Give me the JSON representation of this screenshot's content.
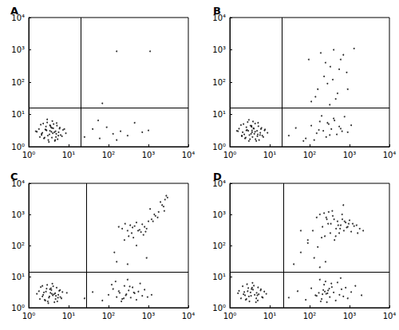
{
  "chart_data": [
    {
      "type": "scatter",
      "title": "A",
      "log": true,
      "grid": false,
      "color": "#000000",
      "marker": "circle",
      "xlim": [
        1,
        10000
      ],
      "ylim": [
        1,
        10000
      ],
      "xticks": [
        {
          "value": 1,
          "label": "10⁰"
        },
        {
          "value": 10,
          "label": "10¹"
        },
        {
          "value": 100,
          "label": "10²"
        },
        {
          "value": 1000,
          "label": "10³"
        },
        {
          "value": 10000,
          "label": "10⁴"
        }
      ],
      "yticks": [
        {
          "value": 1,
          "label": "10⁰"
        },
        {
          "value": 10,
          "label": "10¹"
        },
        {
          "value": 100,
          "label": "10²"
        },
        {
          "value": 1000,
          "label": "10³"
        },
        {
          "value": 10000,
          "label": "10⁴"
        }
      ],
      "gate": {
        "x": 20,
        "y": 16
      },
      "x": [
        2.1,
        3.4,
        4.8,
        2.7,
        5.6,
        3.1,
        1.8,
        4.2,
        6.3,
        2.5,
        3.8,
        2.2,
        5.1,
        4.5,
        3.0,
        1.6,
        7.2,
        2.9,
        4.0,
        3.6,
        2.4,
        5.9,
        3.3,
        4.7,
        2.0,
        6.8,
        3.9,
        2.6,
        5.3,
        4.4,
        1.9,
        3.5,
        2.8,
        4.9,
        6.0,
        3.2,
        2.3,
        5.5,
        4.1,
        3.7,
        8.5,
        1.5,
        2.9,
        4.6,
        3.4,
        7.8,
        2.1,
        5.0,
        3.8,
        2.7,
        25,
        40,
        60,
        90,
        130,
        200,
        300,
        450,
        700,
        1000,
        55,
        160,
        160,
        1100,
        70
      ],
      "values": [
        2.5,
        3.1,
        2.0,
        4.2,
        2.8,
        1.6,
        3.5,
        5.0,
        2.3,
        1.9,
        3.8,
        2.7,
        4.5,
        1.5,
        2.2,
        2.9,
        3.3,
        5.6,
        2.6,
        4.0,
        1.8,
        3.6,
        2.4,
        3.0,
        4.8,
        2.1,
        6.2,
        3.4,
        1.7,
        2.8,
        2.0,
        4.4,
        3.2,
        2.5,
        3.9,
        1.4,
        5.2,
        2.2,
        3.7,
        2.9,
        2.6,
        3.0,
        7.0,
        1.6,
        4.6,
        3.5,
        2.3,
        5.4,
        1.9,
        3.3,
        2.0,
        3.5,
        1.8,
        4.0,
        2.5,
        3.0,
        2.2,
        5.5,
        2.8,
        3.2,
        6.5,
        1.6,
        900,
        900,
        22
      ]
    },
    {
      "type": "scatter",
      "title": "B",
      "log": true,
      "grid": false,
      "color": "#000000",
      "marker": "circle",
      "xlim": [
        1,
        10000
      ],
      "ylim": [
        1,
        10000
      ],
      "xticks": [
        {
          "value": 1,
          "label": "10⁰"
        },
        {
          "value": 10,
          "label": "10¹"
        },
        {
          "value": 100,
          "label": "10²"
        },
        {
          "value": 1000,
          "label": "10³"
        },
        {
          "value": 10000,
          "label": "10⁴"
        }
      ],
      "yticks": [
        {
          "value": 1,
          "label": "10⁰"
        },
        {
          "value": 10,
          "label": "10¹"
        },
        {
          "value": 100,
          "label": "10²"
        },
        {
          "value": 1000,
          "label": "10³"
        },
        {
          "value": 10000,
          "label": "10⁴"
        }
      ],
      "gate": {
        "x": 20,
        "y": 16
      },
      "x": [
        2.3,
        3.6,
        4.9,
        2.6,
        5.8,
        3.2,
        1.7,
        4.3,
        6.5,
        2.4,
        3.9,
        2.1,
        5.2,
        4.6,
        3.1,
        1.6,
        7.4,
        2.8,
        4.1,
        3.5,
        2.5,
        6.0,
        3.4,
        4.8,
        1.9,
        6.9,
        3.8,
        2.7,
        5.4,
        4.3,
        2.0,
        3.3,
        2.9,
        5.0,
        6.2,
        3.0,
        2.2,
        5.7,
        4.0,
        3.6,
        8.8,
        1.5,
        3.0,
        4.4,
        3.5,
        7.6,
        2.0,
        5.1,
        3.7,
        2.6,
        30,
        45,
        80,
        110,
        150,
        180,
        220,
        260,
        300,
        350,
        400,
        480,
        550,
        650,
        750,
        900,
        1100,
        130,
        200,
        280,
        320,
        420,
        600,
        70,
        170,
        110,
        160,
        230,
        330,
        190,
        400,
        600,
        850,
        280,
        500,
        140,
        700,
        1300,
        250,
        450,
        380,
        95,
        900,
        550,
        320
      ],
      "values": [
        2.4,
        3.2,
        2.1,
        4.0,
        2.7,
        1.7,
        3.6,
        5.2,
        2.2,
        1.8,
        3.7,
        2.8,
        4.3,
        1.5,
        2.3,
        3.0,
        3.2,
        5.8,
        2.5,
        4.1,
        1.9,
        3.5,
        2.5,
        3.1,
        4.7,
        2.0,
        6.0,
        3.3,
        1.6,
        2.9,
        2.1,
        4.5,
        3.1,
        2.4,
        3.8,
        1.5,
        5.0,
        2.3,
        3.6,
        2.8,
        2.7,
        3.1,
        6.8,
        1.7,
        4.4,
        3.4,
        2.2,
        5.5,
        2.0,
        3.2,
        2.2,
        3.8,
        1.8,
        4.5,
        2.6,
        6.0,
        3.1,
        2.0,
        5.0,
        3.5,
        7.5,
        2.4,
        4.2,
        3.0,
        8.5,
        2.8,
        4.6,
        1.6,
        9.0,
        5.5,
        2.3,
        6.5,
        3.6,
        1.5,
        3.3,
        25,
        60,
        150,
        300,
        800,
        1000,
        500,
        200,
        90,
        45,
        35,
        700,
        1100,
        400,
        30,
        120,
        500,
        60,
        250,
        20
      ]
    },
    {
      "type": "scatter",
      "title": "C",
      "log": true,
      "grid": false,
      "color": "#000000",
      "marker": "circle",
      "xlim": [
        1,
        10000
      ],
      "ylim": [
        1,
        10000
      ],
      "xticks": [
        {
          "value": 1,
          "label": "10⁰"
        },
        {
          "value": 10,
          "label": "10¹"
        },
        {
          "value": 100,
          "label": "10²"
        },
        {
          "value": 1000,
          "label": "10³"
        },
        {
          "value": 10000,
          "label": "10⁴"
        }
      ],
      "yticks": [
        {
          "value": 1,
          "label": "10⁰"
        },
        {
          "value": 10,
          "label": "10¹"
        },
        {
          "value": 100,
          "label": "10²"
        },
        {
          "value": 1000,
          "label": "10³"
        },
        {
          "value": 10000,
          "label": "10⁴"
        }
      ],
      "gate": {
        "x": 28,
        "y": 14
      },
      "x": [
        2.2,
        3.5,
        4.7,
        2.8,
        5.5,
        3.0,
        1.8,
        4.1,
        6.2,
        2.5,
        3.7,
        2.3,
        5.0,
        4.4,
        3.2,
        1.6,
        7.0,
        2.9,
        4.0,
        3.4,
        2.6,
        5.8,
        3.3,
        4.6,
        2.0,
        6.6,
        3.9,
        2.7,
        5.2,
        4.3,
        1.9,
        3.6,
        2.4,
        4.8,
        6.1,
        3.1,
        2.2,
        5.4,
        9.0,
        3.8,
        25,
        40,
        70,
        100,
        130,
        160,
        190,
        220,
        250,
        280,
        320,
        360,
        400,
        450,
        500,
        560,
        620,
        700,
        800,
        950,
        150,
        210,
        270,
        340,
        180,
        240,
        300,
        430,
        1200,
        120,
        180,
        220,
        260,
        300,
        350,
        400,
        450,
        500,
        600,
        700,
        800,
        900,
        1000,
        1200,
        1500,
        1800,
        2200,
        2600,
        3000,
        2000,
        250,
        320,
        380,
        420,
        550,
        650,
        750,
        850,
        1100,
        1400,
        1700,
        2400,
        2800,
        140,
        160,
        500,
        900,
        300,
        2500,
        1300
      ],
      "values": [
        2.3,
        3.0,
        1.9,
        4.1,
        2.6,
        1.6,
        3.4,
        4.9,
        2.2,
        1.8,
        3.7,
        2.6,
        4.4,
        1.5,
        2.1,
        2.8,
        3.2,
        5.4,
        2.5,
        3.9,
        1.7,
        3.5,
        2.3,
        2.9,
        4.6,
        2.0,
        5.9,
        3.3,
        1.6,
        2.7,
        1.9,
        4.2,
        3.1,
        2.4,
        3.7,
        1.4,
        5.0,
        2.1,
        3.0,
        2.8,
        2.0,
        3.2,
        1.7,
        2.6,
        4.0,
        2.2,
        3.0,
        1.9,
        5.0,
        2.7,
        3.6,
        2.1,
        4.5,
        2.9,
        1.8,
        3.3,
        6.0,
        2.4,
        3.8,
        2.2,
        7.0,
        1.6,
        2.5,
        4.8,
        3.4,
        2.0,
        8.0,
        3.1,
        2.6,
        5.5,
        400,
        350,
        500,
        300,
        450,
        380,
        420,
        550,
        320,
        480,
        400,
        350,
        600,
        700,
        900,
        1200,
        2000,
        3000,
        3500,
        2500,
        150,
        200,
        250,
        180,
        300,
        270,
        220,
        280,
        1500,
        1000,
        800,
        1800,
        4000,
        60,
        30,
        100,
        40,
        25,
        1300,
        600
      ]
    },
    {
      "type": "scatter",
      "title": "D",
      "log": true,
      "grid": false,
      "color": "#000000",
      "marker": "circle",
      "xlim": [
        1,
        10000
      ],
      "ylim": [
        1,
        10000
      ],
      "xticks": [
        {
          "value": 1,
          "label": "10⁰"
        },
        {
          "value": 10,
          "label": "10¹"
        },
        {
          "value": 100,
          "label": "10²"
        },
        {
          "value": 1000,
          "label": "10³"
        },
        {
          "value": 10000,
          "label": "10⁴"
        }
      ],
      "yticks": [
        {
          "value": 1,
          "label": "10⁰"
        },
        {
          "value": 10,
          "label": "10¹"
        },
        {
          "value": 100,
          "label": "10²"
        },
        {
          "value": 1000,
          "label": "10³"
        },
        {
          "value": 10000,
          "label": "10⁴"
        }
      ],
      "gate": {
        "x": 22,
        "y": 14
      },
      "x": [
        2.4,
        3.3,
        4.6,
        2.9,
        5.3,
        3.1,
        1.7,
        4.0,
        6.4,
        2.6,
        3.8,
        2.2,
        5.1,
        4.5,
        3.0,
        1.6,
        7.3,
        2.7,
        4.2,
        3.5,
        2.5,
        5.9,
        3.4,
        4.7,
        2.1,
        6.7,
        3.7,
        2.8,
        5.0,
        8.2,
        1.9,
        3.6,
        2.3,
        4.9,
        6.0,
        30,
        50,
        80,
        110,
        140,
        170,
        200,
        230,
        260,
        290,
        320,
        360,
        400,
        450,
        500,
        560,
        630,
        700,
        800,
        900,
        1100,
        1400,
        150,
        190,
        220,
        250,
        280,
        310,
        180,
        210,
        240,
        270,
        350,
        600,
        2000,
        40,
        60,
        90,
        120,
        150,
        180,
        210,
        240,
        270,
        300,
        340,
        380,
        420,
        460,
        500,
        550,
        600,
        660,
        720,
        800,
        900,
        1000,
        1200,
        1500,
        1800,
        2200,
        130,
        160,
        200,
        230,
        260,
        290,
        330,
        370,
        410,
        450,
        520,
        580,
        650,
        750,
        850,
        950,
        1100,
        1300,
        700,
        250,
        180,
        1600,
        60,
        90
      ],
      "values": [
        2.5,
        3.1,
        2.0,
        4.3,
        2.7,
        1.6,
        3.5,
        5.1,
        2.2,
        1.9,
        3.8,
        2.7,
        4.5,
        1.5,
        2.3,
        2.9,
        3.3,
        5.7,
        2.6,
        4.0,
        1.8,
        3.6,
        2.4,
        3.0,
        4.9,
        2.1,
        6.3,
        3.4,
        1.7,
        2.8,
        2.0,
        4.4,
        3.2,
        2.5,
        3.9,
        2.1,
        3.4,
        1.8,
        4.2,
        2.5,
        3.0,
        1.9,
        5.5,
        2.8,
        3.6,
        2.2,
        4.6,
        3.1,
        1.7,
        6.5,
        2.6,
        3.9,
        2.3,
        4.4,
        2.0,
        3.2,
        5.0,
        2.4,
        1.6,
        3.7,
        7.0,
        2.9,
        4.1,
        8.0,
        2.7,
        3.3,
        1.5,
        6.0,
        9.0,
        2.5,
        25,
        60,
        120,
        300,
        800,
        1000,
        400,
        200,
        700,
        1200,
        500,
        900,
        150,
        350,
        600,
        250,
        450,
        700,
        300,
        550,
        400,
        650,
        500,
        450,
        350,
        300,
        40,
        90,
        180,
        1100,
        800,
        500,
        250,
        1300,
        700,
        200,
        450,
        350,
        1000,
        600,
        380,
        500,
        280,
        420,
        2000,
        30,
        20,
        250,
        300,
        150
      ]
    }
  ]
}
